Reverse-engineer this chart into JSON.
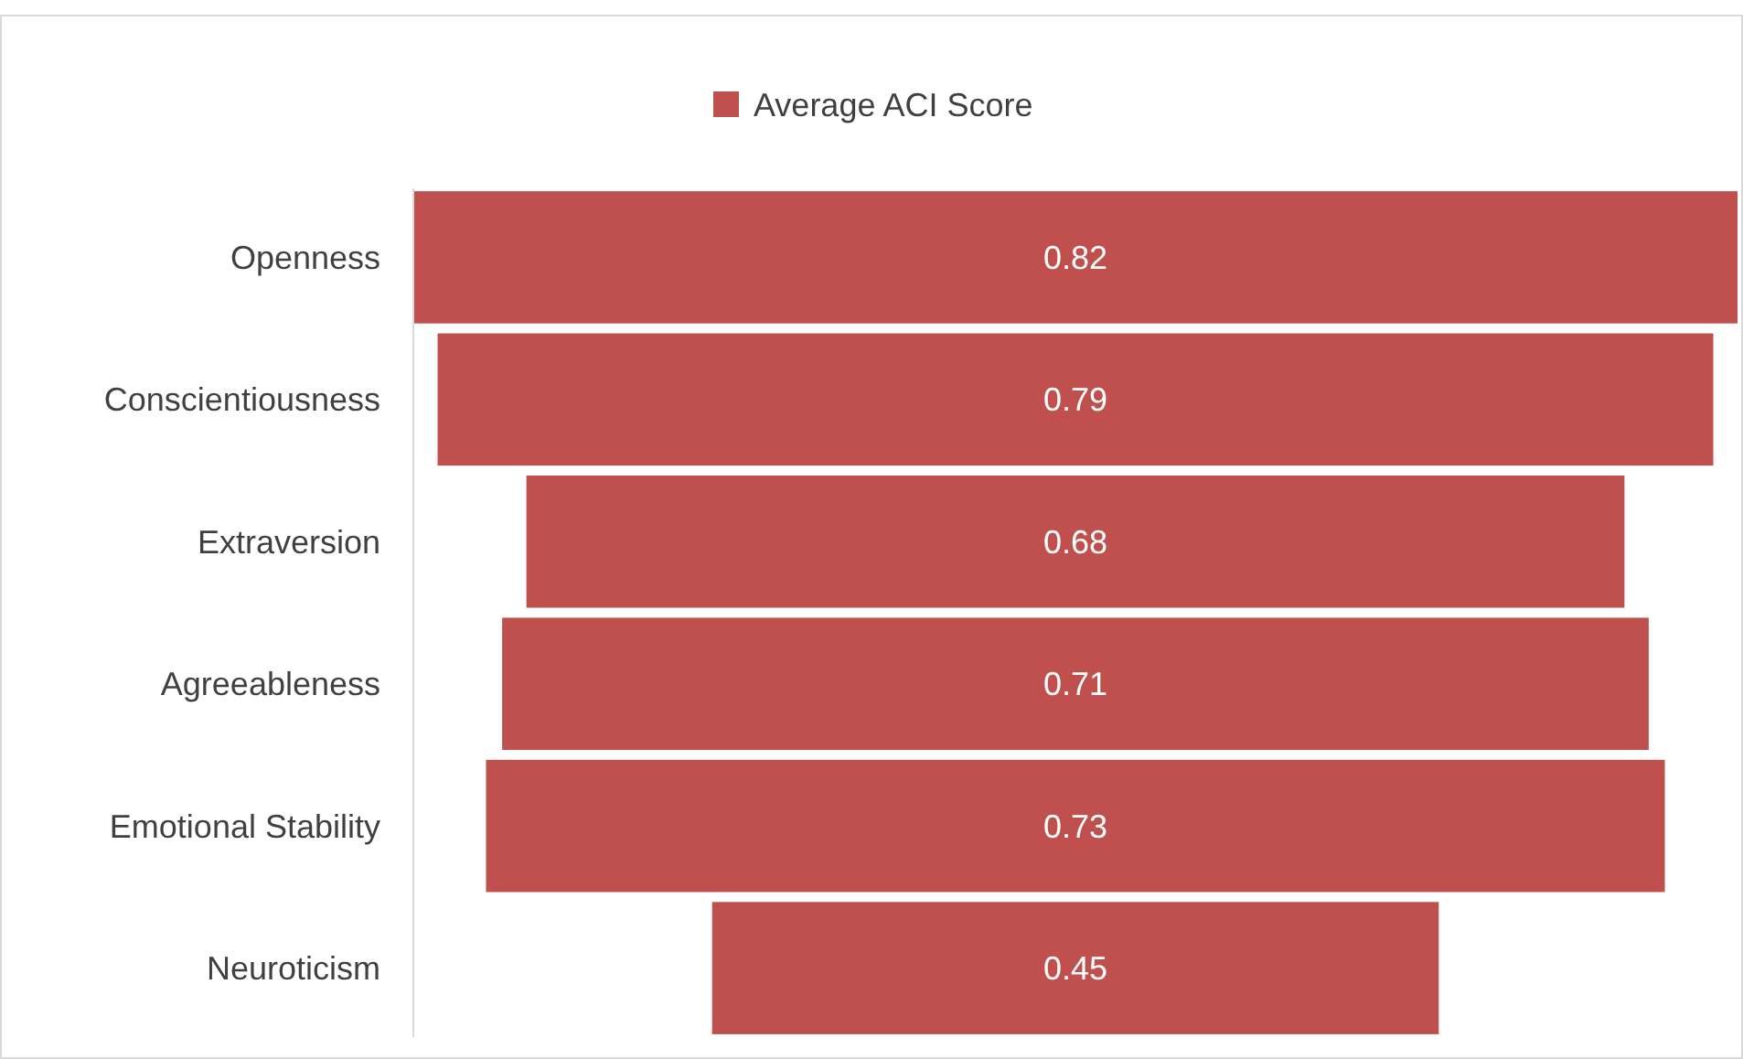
{
  "chart_data": {
    "type": "other",
    "categories": [
      "Openness",
      "Conscientiousness",
      "Extraversion",
      "Agreeableness",
      "Emotional Stability",
      "Neuroticism"
    ],
    "series": [
      {
        "name": "Average ACI Score",
        "color": "#c0504d",
        "values": [
          0.82,
          0.79,
          0.68,
          0.71,
          0.73,
          0.45
        ]
      }
    ],
    "data_labels": true,
    "legend": "top"
  }
}
